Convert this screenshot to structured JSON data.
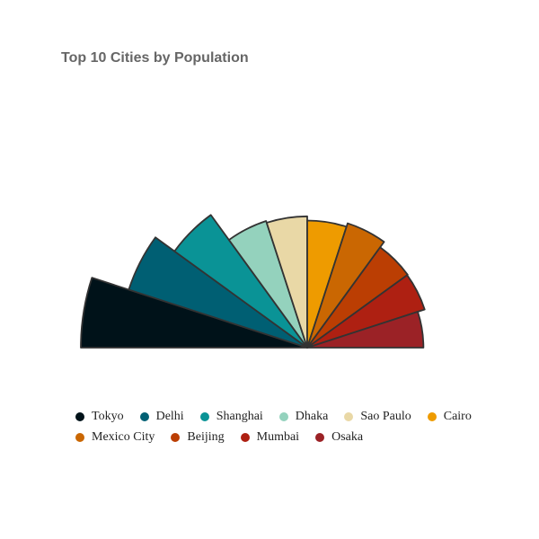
{
  "chart_data": {
    "type": "pie",
    "variant": "semicircle-polar-area",
    "title": "Top 10 Cities by Population",
    "categories": [
      "Tokyo",
      "Delhi",
      "Shanghai",
      "Dhaka",
      "Sao Paulo",
      "Cairo",
      "Mexico City",
      "Beijing",
      "Mumbai",
      "Osaka"
    ],
    "values": [
      37.4,
      31.0,
      27.1,
      22.0,
      21.7,
      21.0,
      21.6,
      20.5,
      20.4,
      19.2
    ],
    "colors": [
      "#001219",
      "#005f73",
      "#0a9396",
      "#94d2bd",
      "#e9d8a6",
      "#ee9b00",
      "#ca6702",
      "#bb3e03",
      "#ae2012",
      "#9b2226"
    ],
    "legend_position": "bottom"
  }
}
